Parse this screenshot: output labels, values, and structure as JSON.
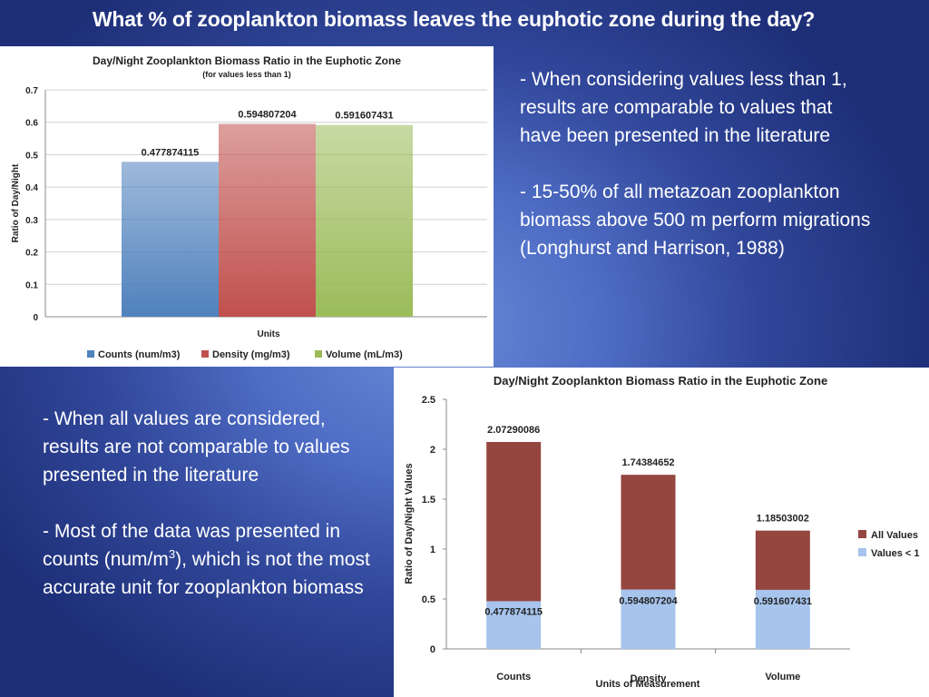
{
  "slide": {
    "title": "What % of zooplankton biomass leaves the euphotic zone during the day?",
    "block1": {
      "p1": "- When considering values less than 1, results are comparable to values that have been presented in the literature",
      "p2": "- 15-50% of all metazoan zooplankton biomass above 500 m perform migrations (Longhurst and Harrison, 1988)"
    },
    "block2": {
      "p1": "- When all values are considered, results are not comparable to values presented in the literature",
      "p2_a": "- Most of the data was presented in counts (num/m",
      "p2_sup": "3",
      "p2_b": "), which is not the most accurate unit for zooplankton biomass"
    }
  },
  "chart_data": [
    {
      "type": "bar",
      "title": "Day/Night Zooplankton Biomass Ratio in the Euphotic Zone",
      "subtitle": "(for values less than 1)",
      "xlabel": "Units",
      "ylabel": "Ratio of Day/Night",
      "ylim": [
        0,
        0.7
      ],
      "yticks": [
        "0",
        "0.1",
        "0.2",
        "0.3",
        "0.4",
        "0.5",
        "0.6",
        "0.7"
      ],
      "grid": true,
      "legend_position": "bottom",
      "series": [
        {
          "name": "Counts (num/m3)",
          "value": 0.477874115,
          "label": "0.477874115",
          "color": "#4f81bd"
        },
        {
          "name": "Density (mg/m3)",
          "value": 0.594807204,
          "label": "0.594807204",
          "color": "#c0504d"
        },
        {
          "name": "Volume (mL/m3)",
          "value": 0.591607431,
          "label": "0.591607431",
          "color": "#9bbb59"
        }
      ]
    },
    {
      "type": "bar",
      "stacked": true,
      "title": "Day/Night Zooplankton Biomass Ratio in the Euphotic Zone",
      "xlabel": "Units of Measurement",
      "ylabel": "Ratio of Day/Night Values",
      "ylim": [
        0,
        2.5
      ],
      "yticks": [
        "0",
        "0.5",
        "1",
        "1.5",
        "2",
        "2.5"
      ],
      "grid": false,
      "legend_position": "right",
      "categories": [
        "Counts",
        "Density",
        "Volume"
      ],
      "series": [
        {
          "name": "Values < 1",
          "color": "#a6c4ec",
          "values": [
            0.477874115,
            0.594807204,
            0.591607431
          ],
          "labels": [
            "0.477874115",
            "0.594807204",
            "0.591607431"
          ]
        },
        {
          "name": "All Values",
          "color": "#94463f",
          "values": [
            2.07290086,
            1.74384652,
            1.18503002
          ],
          "labels": [
            "2.07290086",
            "1.74384652",
            "1.18503002"
          ]
        }
      ]
    }
  ]
}
